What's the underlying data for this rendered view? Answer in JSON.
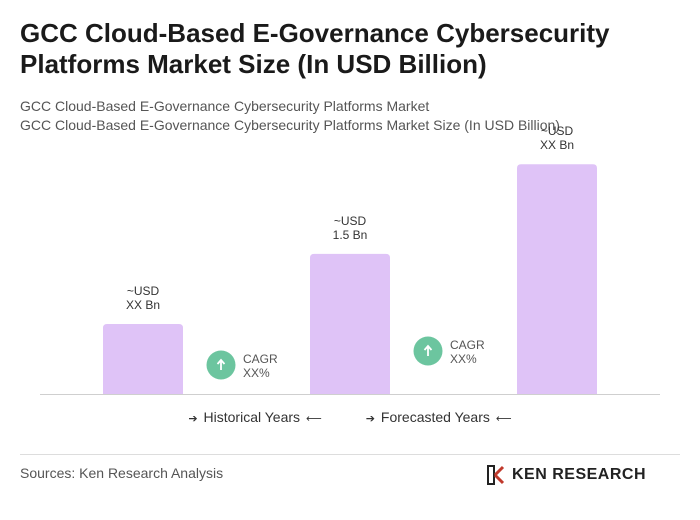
{
  "chart_data": {
    "type": "bar",
    "title": "GCC Cloud-Based E-Governance Cybersecurity Platforms Market Size (In USD Billion)",
    "subtitles": [
      "GCC Cloud-Based E-Governance Cybersecurity Platforms Market",
      "GCC Cloud-Based E-Governance Cybersecurity Platforms Market Size (In USD Billion)"
    ],
    "categories": [
      null,
      null,
      null
    ],
    "values": [
      0.75,
      1.5,
      2.46
    ],
    "value_labels": [
      "~USD\nXX Bn",
      "~USD\n1.5 Bn",
      "~USD\nXX Bn"
    ],
    "color": "#dfc3f7",
    "annotations": [
      "CAGR\nXX%",
      "CAGR\nXX%"
    ],
    "annotation_color": "#6cc59f",
    "legend": [
      "Historical Years",
      "Forecasted Years"
    ],
    "source": "Sources: Ken Research Analysis",
    "logo": "KEN RESEARCH"
  }
}
